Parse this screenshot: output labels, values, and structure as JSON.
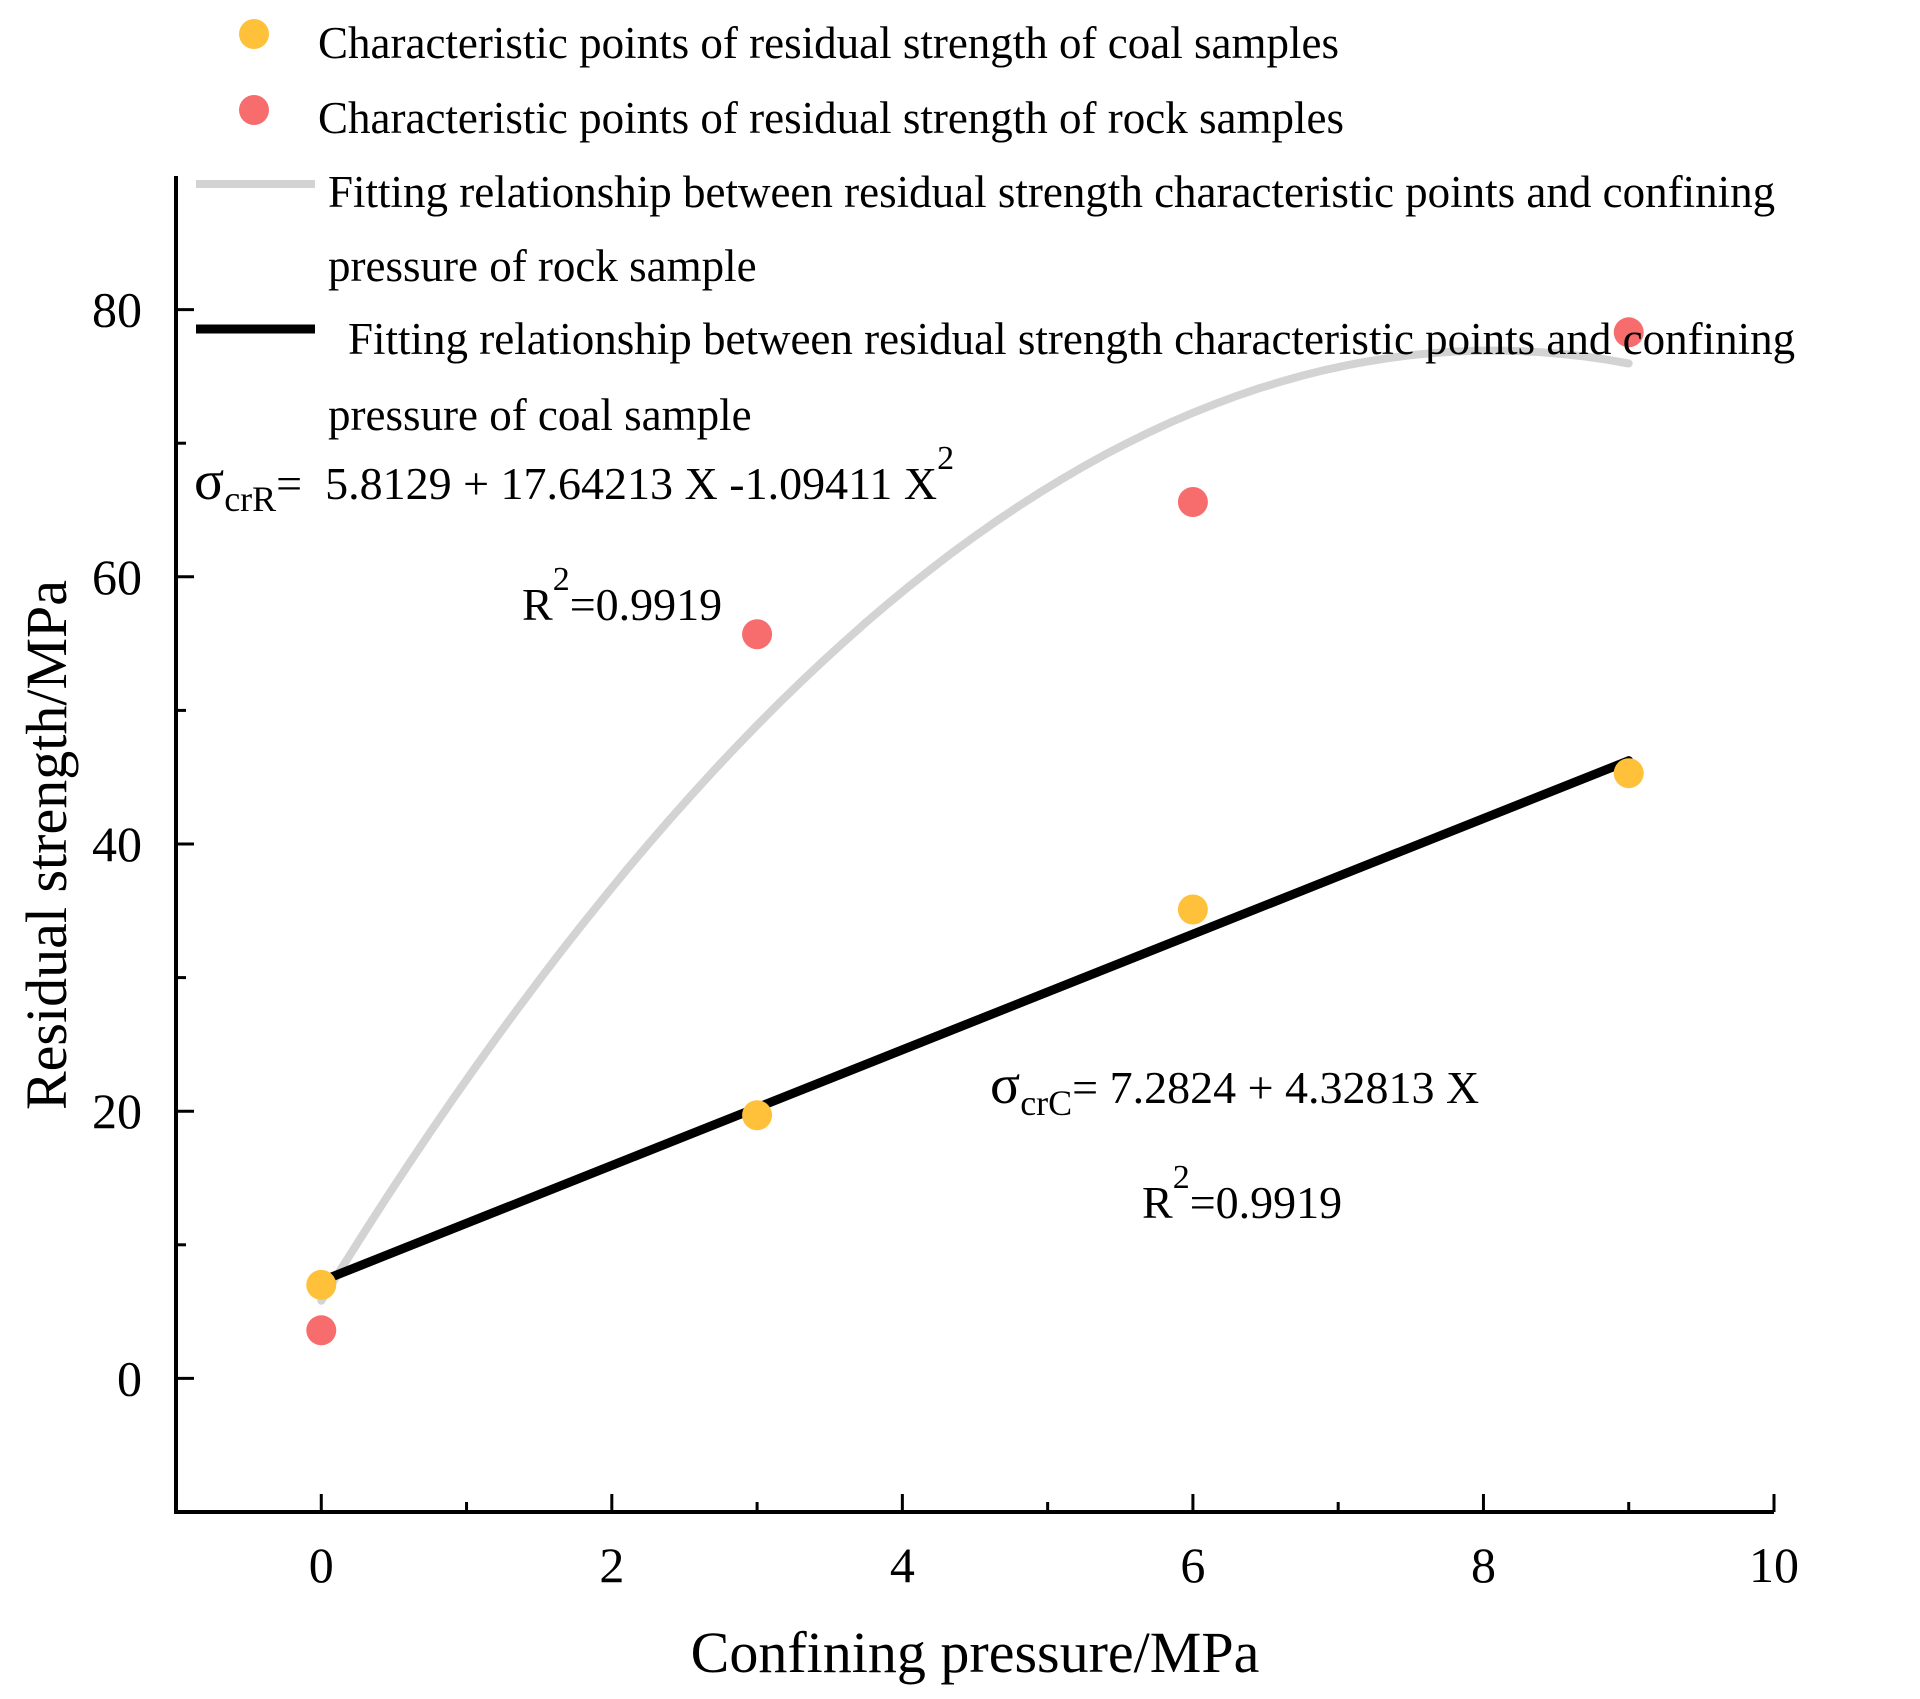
{
  "chart_data": {
    "type": "scatter",
    "xlabel": "Confining pressure/MPa",
    "ylabel": "Residual strength/MPa",
    "xlim": [
      -1,
      10
    ],
    "ylim": [
      -10,
      90
    ],
    "x_ticks": [
      "0",
      "2",
      "4",
      "6",
      "8",
      "10"
    ],
    "x_tick_values": [
      0,
      2,
      4,
      6,
      8,
      10
    ],
    "y_ticks": [
      "0",
      "20",
      "40",
      "60",
      "80"
    ],
    "y_tick_values": [
      0,
      20,
      40,
      60,
      80
    ],
    "series": [
      {
        "name": "Characteristic points of residual strength of coal samples",
        "kind": "points",
        "color": "#FFC03A",
        "x": [
          0,
          3,
          6,
          9
        ],
        "y": [
          7.0,
          19.7,
          35.1,
          45.3
        ]
      },
      {
        "name": "Characteristic points of residual strength of rock samples",
        "kind": "points",
        "color": "#F76C6C",
        "x": [
          0,
          3,
          6,
          9
        ],
        "y": [
          3.6,
          55.7,
          65.6,
          78.3
        ]
      },
      {
        "name_line1": "Fitting relationship between residual strength characteristic points and confining",
        "name_line2": "pressure of rock sample",
        "kind": "quadratic-fit",
        "color": "#D3D3D3",
        "coefficients": [
          5.8129,
          17.64213,
          -1.09411
        ],
        "x_range": [
          0,
          9
        ]
      },
      {
        "name_line1": "Fitting relationship between residual strength characteristic points and confining",
        "name_line2": "pressure of coal sample",
        "kind": "linear-fit",
        "color": "#000000",
        "coefficients": [
          7.2824,
          4.32813
        ],
        "x_range": [
          0,
          9
        ]
      }
    ],
    "annotations": {
      "rock_equation": {
        "sigma": "σ",
        "subscript": "crR",
        "body": "=  5.8129 + 17.64213 X -1.09411 X",
        "superscript": "2"
      },
      "rock_r2": {
        "base": "R",
        "superscript": "2",
        "value": "=0.9919"
      },
      "coal_equation": {
        "sigma": "σ",
        "subscript": "crC",
        "body": "= 7.2824 + 4.32813 X"
      },
      "coal_r2": {
        "base": "R",
        "superscript": "2",
        "value": "=0.9919"
      }
    }
  }
}
